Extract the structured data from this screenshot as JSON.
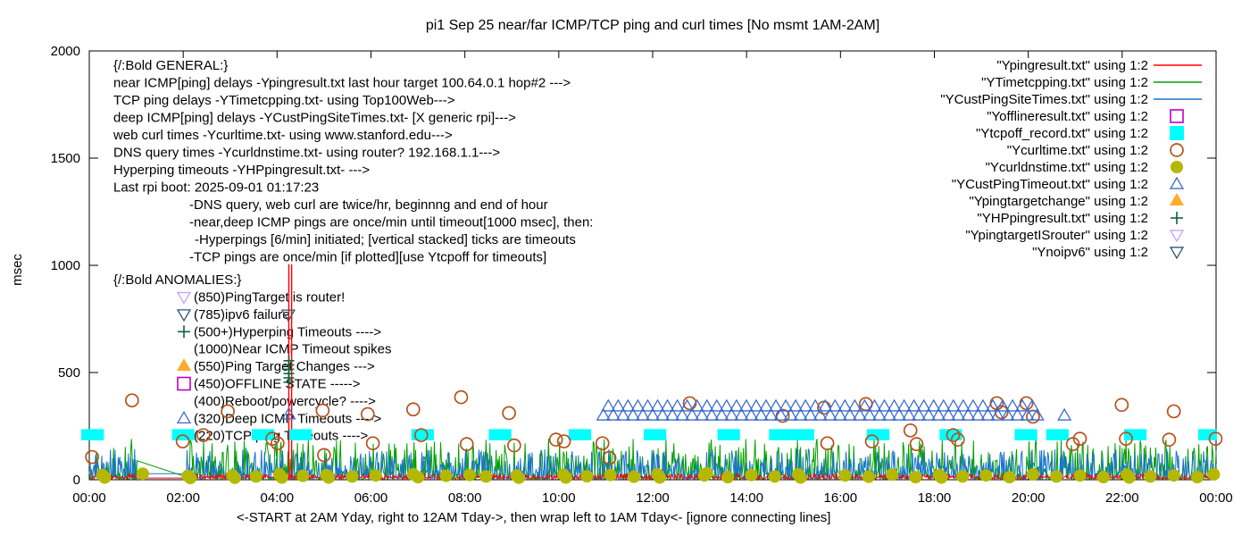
{
  "title": "pi1 Sep 25  near/far ICMP/TCP ping and curl times [No msmt 1AM-2AM]",
  "y_axis": {
    "label": "msec",
    "ticks": [
      0,
      500,
      1000,
      1500,
      2000
    ],
    "lim": [
      0,
      2000
    ]
  },
  "x_axis": {
    "tick_labels": [
      "00:00",
      "02:00",
      "04:00",
      "06:00",
      "08:00",
      "10:00",
      "12:00",
      "14:00",
      "16:00",
      "18:00",
      "20:00",
      "22:00",
      "00:00"
    ],
    "label": "<-START at 2AM Yday, right to 12AM Tday->, then wrap left to 1AM Tday<- [ignore connecting lines]",
    "lim_hours": [
      0,
      24
    ]
  },
  "legend": [
    {
      "label": "\"Ypingresult.txt\" using 1:2",
      "type": "line",
      "color": "#ff0000"
    },
    {
      "label": "\"YTimetcpping.txt\" using 1:2",
      "type": "line",
      "color": "#00a000"
    },
    {
      "label": "\"YCustPingSiteTimes.txt\" using 1:2",
      "type": "line",
      "color": "#1874cd"
    },
    {
      "label": "\"Yofflineresult.txt\" using 1:2",
      "type": "square-open",
      "color": "#bf00bf"
    },
    {
      "label": "\"Ytcpoff_record.txt\" using 1:2",
      "type": "square-fill",
      "color": "#00ffff"
    },
    {
      "label": "\"Ycurltime.txt\" using 1:2",
      "type": "circle-open",
      "color": "#b4531c"
    },
    {
      "label": "\"Ycurldnstime.txt\" using 1:2",
      "type": "circle-fill",
      "color": "#b5b800"
    },
    {
      "label": "\"YCustPingTimeout.txt\" using 1:2",
      "type": "tri-up-open",
      "color": "#3c6bcf"
    },
    {
      "label": "\"Ypingtargetchange\" using 1:2",
      "type": "tri-up-fill",
      "color": "#ffab2e"
    },
    {
      "label": "\"YHPpingresult.txt\" using 1:2",
      "type": "plus",
      "color": "#10603f"
    },
    {
      "label": "\"YpingtargetISrouter\" using 1:2",
      "type": "tri-down-open",
      "color": "#c9a0f7"
    },
    {
      "label": "\"Ynoipv6\" using 1:2",
      "type": "tri-down-open",
      "color": "#2e566b"
    }
  ],
  "annotations": {
    "general_header": "{/:Bold GENERAL:}",
    "general": [
      "near ICMP[ping] delays -Ypingresult.txt last hour target 100.64.0.1 hop#2 --->",
      "TCP ping delays -YTimetcpping.txt- using Top100Web--->",
      "deep ICMP[ping] delays -YCustPingSiteTimes.txt- [X generic rpi]--->",
      "web curl times -Ycurltime.txt- using www.stanford.edu--->",
      "DNS query times -Ycurldnstime.txt- using router? 192.168.1.1--->",
      "Hyperping timeouts -YHPpingresult.txt- --->",
      "Last rpi boot: 2025-09-01 01:17:23"
    ],
    "general_indented": [
      "-DNS query, web curl are twice/hr, beginnng and end of hour",
      "-near,deep ICMP pings are once/min until timeout[1000 msec], then:",
      " -Hyperpings [6/min] initiated; [vertical stacked] ticks are timeouts",
      "-TCP pings are once/min [if plotted][use Ytcpoff for timeouts]"
    ],
    "anomalies_header": "{/:Bold ANOMALIES:}",
    "anomalies": [
      {
        "marker": "tri-down-open",
        "color": "#c9a0f7",
        "text": "(850)PingTarget is router!"
      },
      {
        "marker": "tri-down-open",
        "color": "#2e566b",
        "text": "(785)ipv6 failure!"
      },
      {
        "marker": "plus",
        "color": "#10603f",
        "text": "(500+)Hyperping Timeouts ---->"
      },
      {
        "marker": null,
        "color": null,
        "text": "(1000)Near ICMP Timeout spikes"
      },
      {
        "marker": "tri-up-fill",
        "color": "#ffab2e",
        "text": "(550)Ping Target Changes --->"
      },
      {
        "marker": "square-open",
        "color": "#bf00bf",
        "text": "(450)OFFLINE STATE ----->"
      },
      {
        "marker": null,
        "color": null,
        "text": "(400)Reboot/powercycle? ---->"
      },
      {
        "marker": "tri-up-open",
        "color": "#3c6bcf",
        "text": "(320)Deep ICMP Timeouts ---->"
      },
      {
        "marker": null,
        "color": null,
        "text": "(220)TCP ping Timeouts ---->"
      }
    ]
  },
  "chart_data": {
    "type": "line",
    "note": "x in hours 0-24, y in msec; noisy 1-min-resolution lines are approximated by seeded profiles",
    "xlim": [
      0,
      24
    ],
    "ylim": [
      0,
      2000
    ],
    "grid": false,
    "legend_position": "top-right-inside",
    "profiles": {
      "red": {
        "base": 4,
        "r1": 9,
        "spikeP": 0.3,
        "spikeBase": 14,
        "spikeAmp": 14,
        "gapY": 8
      },
      "green": {
        "base": 3,
        "pow": 3,
        "amp": 190,
        "gapFrom": 90,
        "gapTo": 12
      },
      "blue": {
        "base": 3,
        "pow": 2.3,
        "amp": 140,
        "gapY": 28
      }
    },
    "series": [
      {
        "name": "Ypingresult.txt",
        "kind": "noise-line",
        "profile": "red",
        "seed": 7,
        "color": "#ff0000",
        "spikes": [
          {
            "x": 4.25,
            "y": 1005
          },
          {
            "x": 4.31,
            "y": 1005
          }
        ]
      },
      {
        "name": "YTimetcpping.txt",
        "kind": "noise-line",
        "profile": "green",
        "seed": 13,
        "color": "#00a000"
      },
      {
        "name": "YCustPingSiteTimes.txt",
        "kind": "noise-line",
        "profile": "blue",
        "seed": 5,
        "color": "#1874cd"
      },
      {
        "name": "Yofflineresult.txt",
        "kind": "scatter",
        "marker": "square-open",
        "color": "#bf00bf",
        "points": []
      },
      {
        "name": "Ytcpoff_record.txt",
        "kind": "bars",
        "color": "#00ffff",
        "y_center": 210,
        "half_h_msec": 26,
        "half_w_hours": 0.24,
        "centers": [
          0.07,
          2.0,
          3.7,
          4.5,
          7.1,
          8.75,
          10.45,
          12.05,
          13.62,
          14.72,
          15.2,
          16.8,
          18.35,
          19.95,
          20.62,
          22.28,
          23.86
        ]
      },
      {
        "name": "Ycurltime.txt",
        "kind": "scatter",
        "marker": "circle-open",
        "color": "#b4531c",
        "points": [
          [
            0.06,
            106
          ],
          [
            0.91,
            370
          ],
          [
            1.99,
            179
          ],
          [
            2.43,
            208
          ],
          [
            2.95,
            319
          ],
          [
            3.9,
            191
          ],
          [
            4.01,
            170
          ],
          [
            4.97,
            323
          ],
          [
            5.0,
            115
          ],
          [
            5.93,
            306
          ],
          [
            6.04,
            170
          ],
          [
            6.9,
            328
          ],
          [
            7.07,
            208
          ],
          [
            7.92,
            385
          ],
          [
            8.04,
            166
          ],
          [
            8.94,
            311
          ],
          [
            9.05,
            160
          ],
          [
            9.94,
            187
          ],
          [
            10.11,
            179
          ],
          [
            10.93,
            170
          ],
          [
            11.08,
            102
          ],
          [
            12.79,
            357
          ],
          [
            14.77,
            298
          ],
          [
            15.65,
            336
          ],
          [
            15.72,
            170
          ],
          [
            16.54,
            353
          ],
          [
            16.67,
            179
          ],
          [
            17.49,
            230
          ],
          [
            17.62,
            166
          ],
          [
            18.4,
            208
          ],
          [
            18.5,
            187
          ],
          [
            19.33,
            357
          ],
          [
            19.43,
            315
          ],
          [
            19.96,
            357
          ],
          [
            20.1,
            294
          ],
          [
            20.95,
            166
          ],
          [
            21.1,
            191
          ],
          [
            21.99,
            349
          ],
          [
            22.08,
            191
          ],
          [
            23.0,
            187
          ],
          [
            23.1,
            319
          ],
          [
            23.99,
            191
          ]
        ]
      },
      {
        "name": "Ycurldnstime.txt",
        "kind": "scatter",
        "marker": "circle-fill",
        "color": "#b5b800",
        "points": [
          [
            0.28,
            22
          ],
          [
            0.33,
            10
          ],
          [
            1.14,
            28
          ],
          [
            2.1,
            18
          ],
          [
            2.15,
            8
          ],
          [
            3.05,
            20
          ],
          [
            3.1,
            9
          ],
          [
            3.55,
            15
          ],
          [
            4.05,
            25
          ],
          [
            4.1,
            10
          ],
          [
            4.55,
            18
          ],
          [
            5.05,
            22
          ],
          [
            5.1,
            10
          ],
          [
            5.6,
            15
          ],
          [
            6.1,
            20
          ],
          [
            6.9,
            25
          ],
          [
            7.0,
            12
          ],
          [
            7.6,
            18
          ],
          [
            8.1,
            22
          ],
          [
            8.45,
            15
          ],
          [
            9.1,
            20
          ],
          [
            9.15,
            9
          ],
          [
            10.1,
            24
          ],
          [
            10.15,
            10
          ],
          [
            10.6,
            16
          ],
          [
            11.1,
            22
          ],
          [
            11.6,
            14
          ],
          [
            12.1,
            25
          ],
          [
            12.15,
            10
          ],
          [
            13.1,
            20
          ],
          [
            13.15,
            30
          ],
          [
            13.6,
            12
          ],
          [
            14.1,
            22
          ],
          [
            14.6,
            15
          ],
          [
            15.1,
            25
          ],
          [
            15.15,
            10
          ],
          [
            16.1,
            20
          ],
          [
            16.6,
            14
          ],
          [
            17.1,
            24
          ],
          [
            17.6,
            12
          ],
          [
            18.1,
            22
          ],
          [
            18.15,
            10
          ],
          [
            18.6,
            15
          ],
          [
            19.1,
            20
          ],
          [
            19.6,
            12
          ],
          [
            20.1,
            25
          ],
          [
            20.6,
            15
          ],
          [
            21.1,
            20
          ],
          [
            21.6,
            12
          ],
          [
            22.1,
            24
          ],
          [
            22.15,
            10
          ],
          [
            22.6,
            15
          ],
          [
            23.1,
            20
          ],
          [
            23.6,
            12
          ],
          [
            23.95,
            25
          ]
        ]
      },
      {
        "name": "YCustPingTimeout.txt",
        "kind": "scatter",
        "marker": "tri-up-open",
        "color": "#3c6bcf",
        "row": {
          "start": 10.95,
          "end": 20.28,
          "step": 0.105,
          "y_alt": [
            300,
            342
          ]
        },
        "points": [
          [
            4.25,
            305
          ],
          [
            20.77,
            300
          ]
        ]
      },
      {
        "name": "Ypingtargetchange",
        "kind": "scatter",
        "marker": "tri-up-fill",
        "color": "#ffab2e",
        "points": []
      },
      {
        "name": "YHPpingresult.txt",
        "kind": "scatter",
        "marker": "plus",
        "color": "#10603f",
        "points": [
          [
            4.25,
            455
          ],
          [
            4.25,
            475
          ],
          [
            4.25,
            495
          ],
          [
            4.25,
            515
          ],
          [
            4.25,
            535
          ],
          [
            4.25,
            555
          ]
        ]
      },
      {
        "name": "YpingtargetISrouter",
        "kind": "scatter",
        "marker": "tri-down-open",
        "color": "#c9a0f7",
        "points": []
      },
      {
        "name": "Ynoipv6",
        "kind": "scatter",
        "marker": "tri-down-open",
        "color": "#2e566b",
        "points": [
          [
            4.24,
            770
          ]
        ]
      }
    ]
  }
}
